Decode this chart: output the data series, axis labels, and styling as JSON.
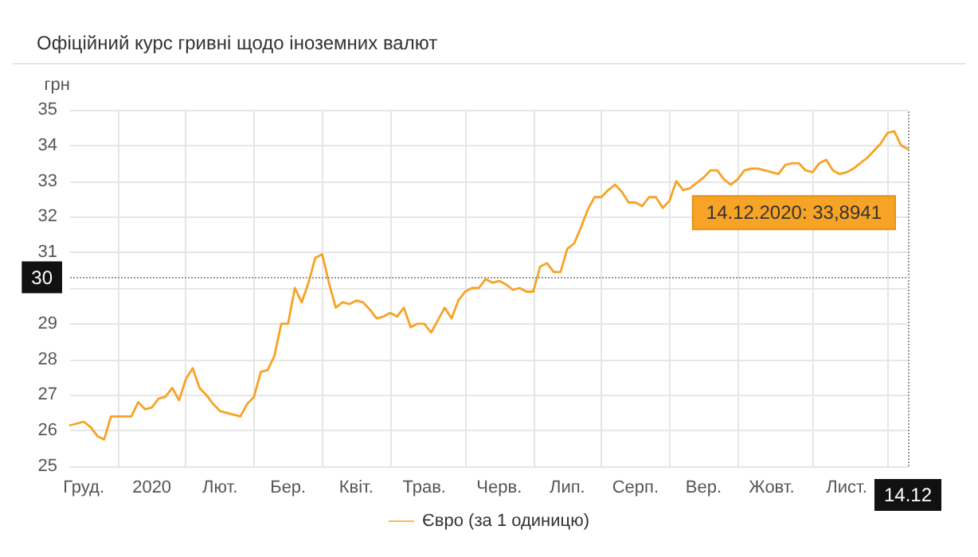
{
  "chart_data": {
    "type": "line",
    "title": "Офіційний курс гривні щодо іноземних валют",
    "ylabel": "грн",
    "categories": [
      null,
      null,
      "Груд.",
      null,
      null,
      null,
      null,
      null,
      null,
      null,
      null,
      null,
      "2020",
      null,
      null,
      null,
      null,
      null,
      null,
      null,
      null,
      null,
      "Лют.",
      null,
      null,
      null,
      null,
      null,
      null,
      null,
      null,
      null,
      "Бер.",
      null,
      null,
      null,
      null,
      null,
      null,
      null,
      null,
      null,
      "Квіт.",
      null,
      null,
      null,
      null,
      null,
      null,
      null,
      null,
      null,
      "Трав.",
      null,
      null,
      null,
      null,
      null,
      null,
      null,
      null,
      null,
      null,
      "Черв.",
      null,
      null,
      null,
      null,
      null,
      null,
      null,
      null,
      null,
      "Лип.",
      null,
      null,
      null,
      null,
      null,
      null,
      null,
      null,
      null,
      "Серп.",
      null,
      null,
      null,
      null,
      null,
      null,
      null,
      null,
      null,
      "Вер.",
      null,
      null,
      null,
      null,
      null,
      null,
      null,
      null,
      null,
      "Жовт.",
      null,
      null,
      null,
      null,
      null,
      null,
      null,
      null,
      null,
      null,
      "Лист.",
      null,
      null,
      null,
      null,
      null,
      null,
      null,
      null,
      "14.12"
    ],
    "series": [
      {
        "name": "Євро (за 1 одиницю)",
        "color": "#f7a325",
        "values": [
          26.15,
          26.2,
          26.25,
          26.1,
          25.85,
          25.75,
          26.4,
          26.4,
          26.4,
          26.4,
          26.8,
          26.6,
          26.65,
          26.9,
          26.95,
          27.2,
          26.85,
          27.45,
          27.75,
          27.2,
          27.0,
          26.75,
          26.55,
          26.5,
          26.45,
          26.4,
          26.75,
          26.95,
          27.65,
          27.7,
          28.1,
          29.0,
          29.0,
          30.0,
          29.6,
          30.15,
          30.85,
          30.95,
          30.15,
          29.45,
          29.6,
          29.55,
          29.65,
          29.6,
          29.4,
          29.15,
          29.2,
          29.3,
          29.2,
          29.45,
          28.9,
          29.0,
          29.0,
          28.75,
          29.1,
          29.45,
          29.15,
          29.65,
          29.9,
          30.0,
          30.0,
          30.25,
          30.15,
          30.2,
          30.1,
          29.95,
          30.0,
          29.9,
          29.9,
          30.6,
          30.7,
          30.45,
          30.45,
          31.1,
          31.25,
          31.7,
          32.2,
          32.55,
          32.55,
          32.75,
          32.9,
          32.7,
          32.4,
          32.4,
          32.3,
          32.55,
          32.55,
          32.25,
          32.45,
          33.0,
          32.75,
          32.8,
          32.95,
          33.1,
          33.3,
          33.3,
          33.05,
          32.9,
          33.05,
          33.3,
          33.35,
          33.35,
          33.3,
          33.25,
          33.2,
          33.45,
          33.5,
          33.5,
          33.3,
          33.25,
          33.5,
          33.6,
          33.3,
          33.2,
          33.25,
          33.35,
          33.5,
          33.65,
          33.85,
          34.05,
          34.35,
          34.4,
          34.0,
          33.9
        ]
      }
    ],
    "ylim": [
      25,
      35
    ],
    "yticks": [
      25,
      26,
      27,
      28,
      29,
      30,
      31,
      32,
      33,
      34,
      35
    ],
    "ref_lines": [
      {
        "axis": "y",
        "value": 30.3,
        "label": "30",
        "color": "#999999",
        "line_style": "dotted"
      },
      {
        "axis": "x",
        "value": "14.12",
        "color": "#999999",
        "line_style": "dotted"
      }
    ],
    "annotations": [
      "14.12.2020: 33,8941"
    ],
    "grid": true,
    "legend": "bottom",
    "marker": "none",
    "line_style": "solid"
  }
}
